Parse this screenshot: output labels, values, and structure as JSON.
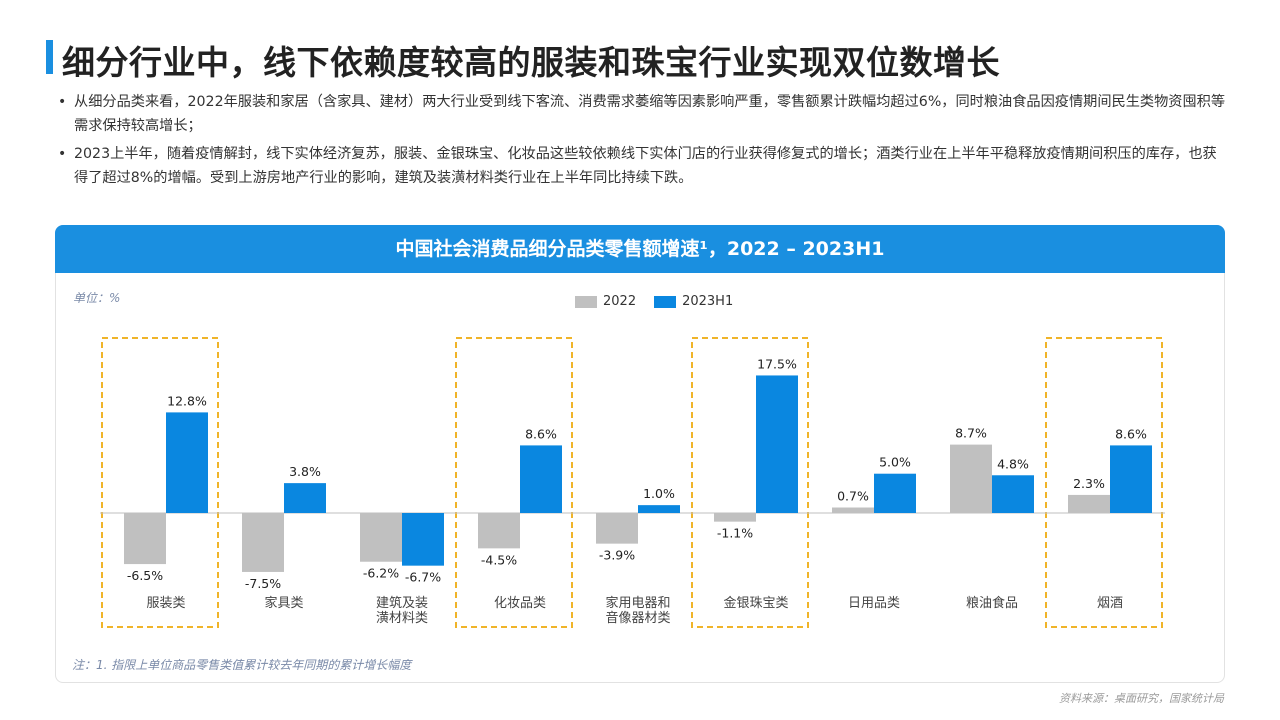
{
  "title": "细分行业中，线下依赖度较高的服装和珠宝行业实现双位数增长",
  "bullets": [
    "从细分品类来看，2022年服装和家居（含家具、建材）两大行业受到线下客流、消费需求萎缩等因素影响严重，零售额累计跌幅均超过6%，同时粮油食品因疫情期间民生类物资囤积等需求保持较高增长；",
    "2023上半年，随着疫情解封，线下实体经济复苏，服装、金银珠宝、化妆品这些较依赖线下实体门店的行业获得修复式的增长；酒类行业在上半年平稳释放疫情期间积压的库存，也获得了超过8%的增幅。受到上游房地产行业的影响，建筑及装潢材料类行业在上半年同比持续下跌。"
  ],
  "chart_header": "中国社会消费品细分品类零售额增速¹，2022 – 2023H1",
  "unit_label": "单位：%",
  "footnote": "注：1. 指限上单位商品零售类值累计较去年同期的累计增长幅度",
  "source": "资料来源：桌面研究，国家统计局",
  "colors": {
    "accent": "#1a8fe0",
    "series_2022": "#c0c0c0",
    "series_2023": "#0a87e0",
    "highlight_box": "#f0b429"
  },
  "chart_data": {
    "type": "bar",
    "categories": [
      "服装类",
      "家具类",
      "建筑及装潢材料类",
      "化妆品类",
      "家用电器和音像器材类",
      "金银珠宝类",
      "日用品类",
      "粮油食品",
      "烟酒"
    ],
    "category_lines": [
      [
        "服装类"
      ],
      [
        "家具类"
      ],
      [
        "建筑及装",
        "潢材料类"
      ],
      [
        "化妆品类"
      ],
      [
        "家用电器和",
        "音像器材类"
      ],
      [
        "金银珠宝类"
      ],
      [
        "日用品类"
      ],
      [
        "粮油食品"
      ],
      [
        "烟酒"
      ]
    ],
    "series": [
      {
        "name": "2022",
        "values": [
          -6.5,
          -7.5,
          -6.2,
          -4.5,
          -3.9,
          -1.1,
          0.7,
          8.7,
          2.3
        ]
      },
      {
        "name": "2023H1",
        "values": [
          12.8,
          3.8,
          -6.7,
          8.6,
          1.0,
          17.5,
          5.0,
          4.8,
          8.6
        ]
      }
    ],
    "value_labels": [
      [
        "-6.5%",
        "-7.5%",
        "-6.2%",
        "-4.5%",
        "-3.9%",
        "-1.1%",
        "0.7%",
        "8.7%",
        "2.3%"
      ],
      [
        "12.8%",
        "3.8%",
        "-6.7%",
        "8.6%",
        "1.0%",
        "17.5%",
        "5.0%",
        "4.8%",
        "8.6%"
      ]
    ],
    "highlighted_categories": [
      "服装类",
      "化妆品类",
      "金银珠宝类",
      "烟酒"
    ],
    "legend_position": "top-center"
  }
}
